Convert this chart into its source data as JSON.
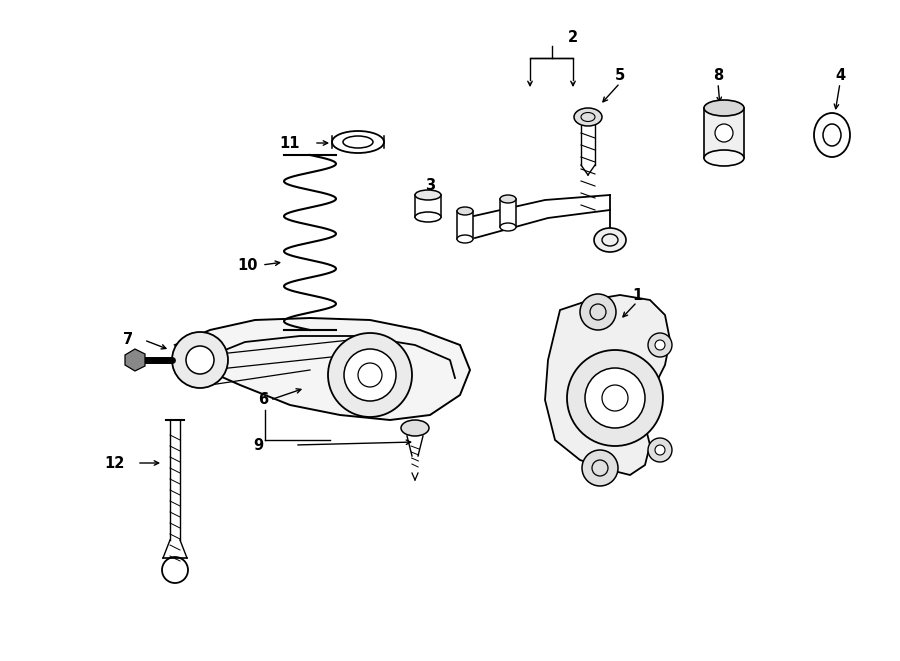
{
  "bg_color": "#ffffff",
  "line_color": "#000000",
  "fig_width": 9.0,
  "fig_height": 6.61,
  "dpi": 100
}
